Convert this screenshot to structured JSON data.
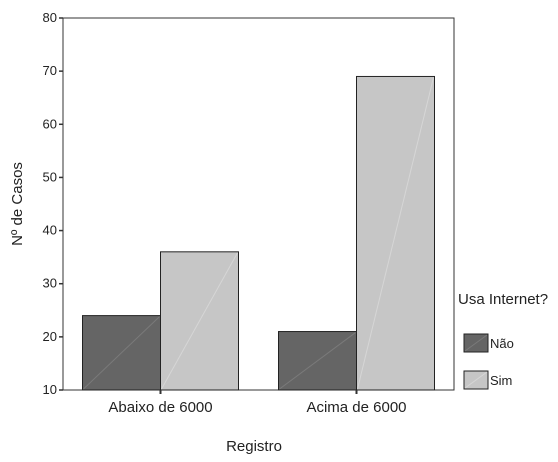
{
  "chart_data": {
    "type": "bar",
    "title": "",
    "xlabel": "Registro",
    "ylabel": "Nº de Casos",
    "categories": [
      "Abaixo de 6000",
      "Acima de 6000"
    ],
    "ylim": [
      10,
      80
    ],
    "yticks": [
      10,
      20,
      30,
      40,
      50,
      60,
      70,
      80
    ],
    "series": [
      {
        "name": "Não",
        "values": [
          24,
          21
        ],
        "color": "#656565"
      },
      {
        "name": "Sim",
        "values": [
          36,
          69
        ],
        "color": "#c6c6c6"
      }
    ],
    "legend": {
      "title": "Usa Internet?",
      "placement": "right"
    },
    "grid": false
  }
}
